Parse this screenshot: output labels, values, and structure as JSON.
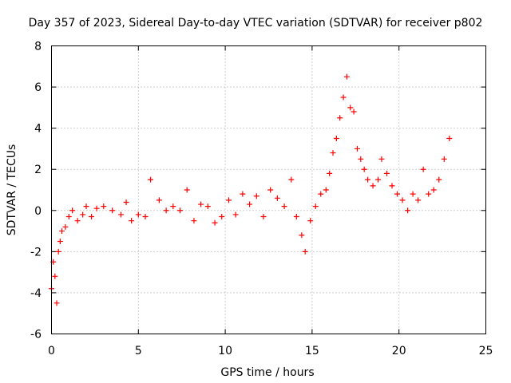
{
  "chart_data": {
    "type": "scatter",
    "title": "Day 357 of 2023, Sidereal Day-to-day VTEC variation (SDTVAR) for receiver p802",
    "xlabel": "GPS time / hours",
    "ylabel": "SDTVAR / TECUs",
    "xlim": [
      0,
      25
    ],
    "ylim": [
      -6,
      8
    ],
    "xticks": [
      "0",
      "5",
      "10",
      "15",
      "20",
      "25"
    ],
    "yticks": [
      "-6",
      "-4",
      "-2",
      "0",
      "2",
      "4",
      "6",
      "8"
    ],
    "grid": true,
    "marker": "+",
    "color": "#ff0000",
    "series": [
      {
        "name": "SDTVAR",
        "x": [
          0.0,
          0.1,
          0.2,
          0.3,
          0.4,
          0.5,
          0.6,
          0.8,
          1.0,
          1.2,
          1.5,
          1.8,
          2.0,
          2.3,
          2.6,
          3.0,
          3.5,
          4.0,
          4.3,
          4.6,
          5.0,
          5.4,
          5.7,
          6.2,
          6.6,
          7.0,
          7.4,
          7.8,
          8.2,
          8.6,
          9.0,
          9.4,
          9.8,
          10.2,
          10.6,
          11.0,
          11.4,
          11.8,
          12.2,
          12.6,
          13.0,
          13.4,
          13.8,
          14.1,
          14.4,
          14.6,
          14.9,
          15.2,
          15.5,
          15.8,
          16.0,
          16.2,
          16.4,
          16.6,
          16.8,
          17.0,
          17.2,
          17.4,
          17.6,
          17.8,
          18.0,
          18.2,
          18.5,
          18.8,
          19.0,
          19.3,
          19.6,
          19.9,
          20.2,
          20.5,
          20.8,
          21.1,
          21.4,
          21.7,
          22.0,
          22.3,
          22.6,
          22.9
        ],
        "y": [
          -3.8,
          -2.5,
          -3.2,
          -4.5,
          -2.0,
          -1.5,
          -1.0,
          -0.8,
          -0.3,
          0.0,
          -0.5,
          -0.2,
          0.2,
          -0.3,
          0.1,
          0.2,
          0.0,
          -0.2,
          0.4,
          -0.5,
          -0.2,
          -0.3,
          1.5,
          0.5,
          0.0,
          0.2,
          0.0,
          1.0,
          -0.5,
          0.3,
          0.2,
          -0.6,
          -0.3,
          0.5,
          -0.2,
          0.8,
          0.3,
          0.7,
          -0.3,
          1.0,
          0.6,
          0.2,
          1.5,
          -0.3,
          -1.2,
          -2.0,
          -0.5,
          0.2,
          0.8,
          1.0,
          1.8,
          2.8,
          3.5,
          4.5,
          5.5,
          6.5,
          5.0,
          4.8,
          3.0,
          2.5,
          2.0,
          1.5,
          1.2,
          1.5,
          2.5,
          1.8,
          1.2,
          0.8,
          0.5,
          0.0,
          0.8,
          0.5,
          2.0,
          0.8,
          1.0,
          1.5,
          2.5,
          3.5
        ]
      }
    ]
  }
}
